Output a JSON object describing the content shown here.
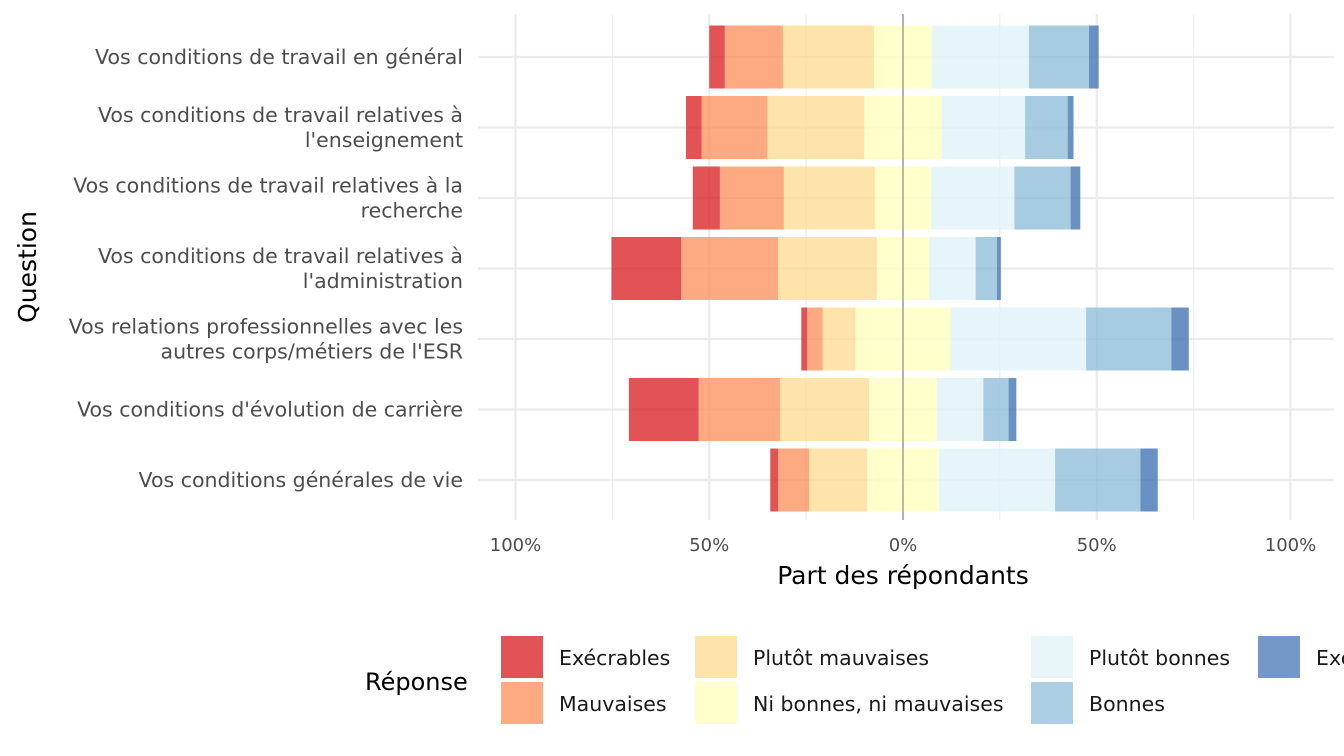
{
  "chart_data": {
    "type": "bar",
    "orientation": "horizontal",
    "stacked": "diverging",
    "xlabel": "Part des répondants",
    "ylabel": "Question",
    "xlim": [
      -100,
      100
    ],
    "xticks": [
      -100,
      -50,
      0,
      50,
      100
    ],
    "xtick_labels": [
      "100%",
      "50%",
      "0%",
      "50%",
      "100%"
    ],
    "grid": true,
    "legend": {
      "title": "Réponse",
      "position": "bottom"
    },
    "categories": [
      "Vos conditions de travail en général",
      "Vos conditions de travail relatives à l'enseignement",
      "Vos conditions de travail relatives à la recherche",
      "Vos conditions de travail relatives à l'administration",
      "Vos relations professionnelles avec les autres corps/métiers de l'ESR",
      "Vos conditions d'évolution de carrière",
      "Vos conditions générales de vie"
    ],
    "category_lines": [
      [
        "Vos conditions de travail en général"
      ],
      [
        "Vos conditions de travail relatives à",
        "l'enseignement"
      ],
      [
        "Vos conditions de travail relatives à la",
        "recherche"
      ],
      [
        "Vos conditions de travail relatives à",
        "l'administration"
      ],
      [
        "Vos relations professionnelles avec les",
        "autres corps/métiers de l'ESR"
      ],
      [
        "Vos conditions d'évolution de carrière"
      ],
      [
        "Vos conditions générales de vie"
      ]
    ],
    "series": [
      {
        "name": "Exécrables",
        "color": "#d7191c",
        "side": "negative",
        "values": [
          4,
          4,
          7,
          18,
          1.5,
          18,
          2
        ]
      },
      {
        "name": "Mauvaises",
        "color": "#fc8d59",
        "side": "negative",
        "values": [
          15,
          17,
          16.5,
          25,
          4,
          21,
          8
        ]
      },
      {
        "name": "Plutôt mauvaises",
        "color": "#fed98e",
        "side": "negative",
        "values": [
          23.5,
          25,
          23.5,
          25.5,
          8.5,
          23,
          15
        ]
      },
      {
        "name": "Ni bonnes, ni mauvaises",
        "color": "#ffffbf",
        "side": "neutral",
        "values": [
          15,
          20,
          14.5,
          13.5,
          24.5,
          17.5,
          18.5
        ]
      },
      {
        "name": "Plutôt bonnes",
        "color": "#e0f3f8",
        "side": "positive",
        "values": [
          25,
          21.5,
          21.5,
          12,
          35,
          12,
          30
        ]
      },
      {
        "name": "Bonnes",
        "color": "#91bfdb",
        "side": "positive",
        "values": [
          15.5,
          11,
          14.5,
          5.5,
          22,
          6.5,
          22
        ]
      },
      {
        "name": "Excellentes",
        "color": "#4575b4",
        "side": "positive",
        "values": [
          2.5,
          1.5,
          2.5,
          1,
          4.5,
          2,
          4.5
        ]
      }
    ]
  }
}
